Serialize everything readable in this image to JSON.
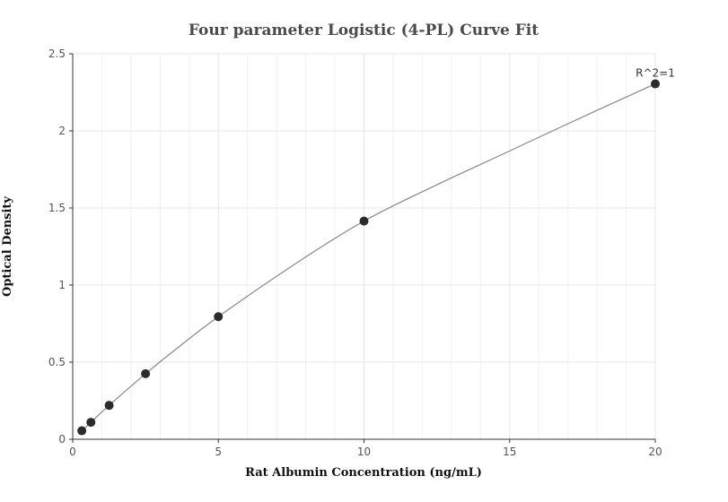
{
  "chart_data": {
    "type": "scatter",
    "title": "Four parameter Logistic (4-PL) Curve Fit",
    "xlabel": "Rat Albumin Concentration (ng/mL)",
    "ylabel": "Optical Density",
    "xlim": [
      0,
      20
    ],
    "ylim": [
      0,
      2.5
    ],
    "x_ticks": [
      0,
      5,
      10,
      15,
      20
    ],
    "y_ticks": [
      0,
      0.5,
      1,
      1.5,
      2,
      2.5
    ],
    "x_tick_labels": [
      "0",
      "5",
      "10",
      "15",
      "20"
    ],
    "y_tick_labels": [
      "0",
      "0.5",
      "1",
      "1.5",
      "2",
      "2.5"
    ],
    "grid": true,
    "series": [
      {
        "x": [
          0.3125,
          0.625,
          1.25,
          2.5,
          5,
          10,
          20
        ],
        "y": [
          0.055,
          0.11,
          0.22,
          0.425,
          0.795,
          1.415,
          2.305
        ]
      }
    ],
    "fit_curve": {
      "x": [
        0.3125,
        0.625,
        1.25,
        2.5,
        3.75,
        5,
        7.5,
        10,
        12.5,
        15,
        17.5,
        20
      ],
      "y": [
        0.055,
        0.11,
        0.22,
        0.425,
        0.615,
        0.795,
        1.12,
        1.415,
        1.65,
        1.87,
        2.09,
        2.305
      ]
    },
    "annotations": [
      {
        "text": "R^2=1",
        "x": 20,
        "y": 2.305
      }
    ],
    "colors": {
      "marker": "#2b2b2b",
      "curve": "#888888",
      "grid": "#e6e6ef",
      "minor_grid": "#f1f1f5",
      "axis": "#333333"
    }
  }
}
